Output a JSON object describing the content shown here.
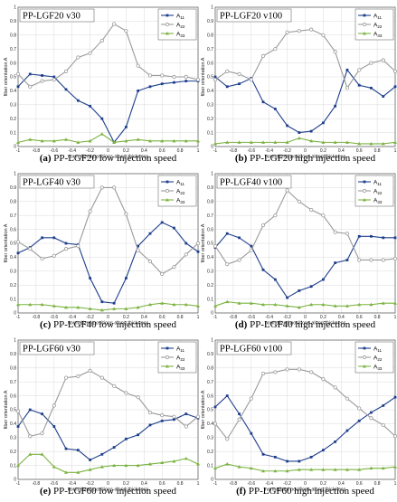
{
  "colors": {
    "A11": "#1f3f8c",
    "A22": "#9a9a9a",
    "A33": "#7cb342",
    "grid": "#d9d9d9",
    "frame": "#555555"
  },
  "legend": [
    {
      "base": "A",
      "sub": "11"
    },
    {
      "base": "A",
      "sub": "22"
    },
    {
      "base": "A",
      "sub": "33"
    }
  ],
  "chart_data": [
    {
      "type": "line",
      "title": "PP-LGF20 v30",
      "tag": "(a)",
      "caption": "PP-LGF20 low injection speed",
      "xlabel": "normalized positions along thickness",
      "ylabel": "fiber orientation A",
      "xlim": [
        -1,
        1
      ],
      "ylim": [
        0,
        1
      ],
      "grid": true,
      "legend": "top-right",
      "xticks": [
        "-1",
        "-0.8",
        "-0.6",
        "-0.4",
        "-0.2",
        "0",
        "0.2",
        "0.4",
        "0.6",
        "0.8",
        "1"
      ],
      "yticks": [
        "0",
        "0.1",
        "0.2",
        "0.3",
        "0.4",
        "0.5",
        "0.6",
        "0.7",
        "0.8",
        "0.9",
        "1"
      ],
      "x": [
        -1,
        -0.867,
        -0.733,
        -0.6,
        -0.467,
        -0.333,
        -0.2,
        -0.067,
        0.067,
        0.2,
        0.333,
        0.467,
        0.6,
        0.733,
        0.867,
        1
      ],
      "series": [
        {
          "name": "A11",
          "values": [
            0.43,
            0.52,
            0.51,
            0.5,
            0.41,
            0.33,
            0.29,
            0.2,
            0.03,
            0.14,
            0.4,
            0.43,
            0.45,
            0.46,
            0.47,
            0.47
          ]
        },
        {
          "name": "A22",
          "values": [
            0.52,
            0.43,
            0.47,
            0.48,
            0.54,
            0.64,
            0.67,
            0.76,
            0.88,
            0.83,
            0.58,
            0.51,
            0.51,
            0.5,
            0.5,
            0.48
          ]
        },
        {
          "name": "A33",
          "values": [
            0.03,
            0.05,
            0.04,
            0.04,
            0.05,
            0.03,
            0.04,
            0.09,
            0.03,
            0.04,
            0.05,
            0.04,
            0.04,
            0.04,
            0.04,
            0.04
          ]
        }
      ]
    },
    {
      "type": "line",
      "title": "PP-LGF20 v100",
      "tag": "(b)",
      "caption": "PP-LGF20 high injection speed",
      "xlabel": "normalized positions along thickness",
      "ylabel": "fiber orientation A",
      "xlim": [
        -1,
        1
      ],
      "ylim": [
        0,
        1
      ],
      "grid": true,
      "legend": "top-right",
      "xticks": [
        "-1",
        "-0.8",
        "-0.6",
        "-0.4",
        "-0.2",
        "0",
        "0.2",
        "0.4",
        "0.6",
        "0.8",
        "1"
      ],
      "yticks": [
        "0",
        "0.1",
        "0.2",
        "0.3",
        "0.4",
        "0.5",
        "0.6",
        "0.7",
        "0.8",
        "0.9",
        "1"
      ],
      "x": [
        -1,
        -0.867,
        -0.733,
        -0.6,
        -0.467,
        -0.333,
        -0.2,
        -0.067,
        0.067,
        0.2,
        0.333,
        0.467,
        0.6,
        0.733,
        0.867,
        1
      ],
      "series": [
        {
          "name": "A11",
          "values": [
            0.5,
            0.43,
            0.45,
            0.49,
            0.32,
            0.27,
            0.15,
            0.1,
            0.11,
            0.17,
            0.29,
            0.55,
            0.44,
            0.42,
            0.36,
            0.43
          ]
        },
        {
          "name": "A22",
          "values": [
            0.48,
            0.54,
            0.52,
            0.48,
            0.65,
            0.7,
            0.82,
            0.83,
            0.84,
            0.8,
            0.68,
            0.42,
            0.55,
            0.6,
            0.62,
            0.54
          ]
        },
        {
          "name": "A33",
          "values": [
            0.02,
            0.03,
            0.03,
            0.03,
            0.03,
            0.03,
            0.03,
            0.06,
            0.04,
            0.03,
            0.03,
            0.03,
            0.02,
            0.02,
            0.02,
            0.03
          ]
        }
      ]
    },
    {
      "type": "line",
      "title": "PP-LGF40 v30",
      "tag": "(c)",
      "caption": "PP-LGF40 low injection speed",
      "xlabel": "normalized positions along thickness",
      "ylabel": "fiber orientation A",
      "xlim": [
        -1,
        1
      ],
      "ylim": [
        0,
        1
      ],
      "grid": true,
      "legend": "top-right",
      "xticks": [
        "-1",
        "-0.8",
        "-0.6",
        "-0.4",
        "-0.2",
        "0",
        "0.2",
        "0.4",
        "0.6",
        "0.8",
        "1"
      ],
      "yticks": [
        "0",
        "0.1",
        "0.2",
        "0.3",
        "0.4",
        "0.5",
        "0.6",
        "0.7",
        "0.8",
        "0.9",
        "1"
      ],
      "x": [
        -1,
        -0.867,
        -0.733,
        -0.6,
        -0.467,
        -0.333,
        -0.2,
        -0.067,
        0.067,
        0.2,
        0.333,
        0.467,
        0.6,
        0.733,
        0.867,
        1
      ],
      "series": [
        {
          "name": "A11",
          "values": [
            0.43,
            0.47,
            0.54,
            0.54,
            0.5,
            0.49,
            0.25,
            0.08,
            0.07,
            0.25,
            0.48,
            0.57,
            0.65,
            0.61,
            0.5,
            0.44
          ]
        },
        {
          "name": "A22",
          "values": [
            0.51,
            0.46,
            0.39,
            0.41,
            0.46,
            0.48,
            0.73,
            0.9,
            0.9,
            0.71,
            0.45,
            0.37,
            0.28,
            0.33,
            0.42,
            0.5
          ]
        },
        {
          "name": "A33",
          "values": [
            0.06,
            0.06,
            0.06,
            0.05,
            0.04,
            0.04,
            0.03,
            0.02,
            0.03,
            0.03,
            0.04,
            0.06,
            0.07,
            0.06,
            0.06,
            0.05
          ]
        }
      ]
    },
    {
      "type": "line",
      "title": "PP-LGF40 v100",
      "tag": "(d)",
      "caption": "PP-LGF40 high injection speed",
      "xlabel": "normalized positions along thickness",
      "ylabel": "fiber orientation A",
      "xlim": [
        -1,
        1
      ],
      "ylim": [
        0,
        1
      ],
      "grid": true,
      "legend": "top-right",
      "xticks": [
        "-1",
        "-0.8",
        "-0.6",
        "-0.4",
        "-0.2",
        "0",
        "0.2",
        "0.4",
        "0.6",
        "0.8",
        "1"
      ],
      "yticks": [
        "0",
        "0.1",
        "0.2",
        "0.3",
        "0.4",
        "0.5",
        "0.6",
        "0.7",
        "0.8",
        "0.9",
        "1"
      ],
      "x": [
        -1,
        -0.867,
        -0.733,
        -0.6,
        -0.467,
        -0.333,
        -0.2,
        -0.067,
        0.067,
        0.2,
        0.333,
        0.467,
        0.6,
        0.733,
        0.867,
        1
      ],
      "series": [
        {
          "name": "A11",
          "values": [
            0.47,
            0.57,
            0.54,
            0.48,
            0.31,
            0.24,
            0.11,
            0.16,
            0.19,
            0.24,
            0.36,
            0.38,
            0.55,
            0.55,
            0.54,
            0.54
          ]
        },
        {
          "name": "A22",
          "values": [
            0.48,
            0.35,
            0.38,
            0.45,
            0.63,
            0.7,
            0.88,
            0.8,
            0.74,
            0.7,
            0.58,
            0.57,
            0.38,
            0.38,
            0.38,
            0.39
          ]
        },
        {
          "name": "A33",
          "values": [
            0.05,
            0.08,
            0.07,
            0.07,
            0.06,
            0.06,
            0.05,
            0.04,
            0.06,
            0.06,
            0.05,
            0.05,
            0.06,
            0.06,
            0.07,
            0.07
          ]
        }
      ]
    },
    {
      "type": "line",
      "title": "PP-LGF60 v30",
      "tag": "(e)",
      "caption": "PP-LGF60 low injection speed",
      "xlabel": "normalized positions along thickness",
      "ylabel": "fiber orientation A",
      "xlim": [
        -1,
        1
      ],
      "ylim": [
        0,
        1
      ],
      "grid": true,
      "legend": "top-right",
      "xticks": [
        "-1",
        "-0.8",
        "-0.6",
        "-0.4",
        "-0.2",
        "0",
        "0.2",
        "0.4",
        "0.6",
        "0.8",
        "1"
      ],
      "yticks": [
        "0",
        "0.1",
        "0.2",
        "0.3",
        "0.4",
        "0.5",
        "0.6",
        "0.7",
        "0.8",
        "0.9",
        "1"
      ],
      "x": [
        -1,
        -0.867,
        -0.733,
        -0.6,
        -0.467,
        -0.333,
        -0.2,
        -0.067,
        0.067,
        0.2,
        0.333,
        0.467,
        0.6,
        0.733,
        0.867,
        1
      ],
      "series": [
        {
          "name": "A11",
          "values": [
            0.38,
            0.5,
            0.47,
            0.38,
            0.22,
            0.21,
            0.14,
            0.18,
            0.23,
            0.29,
            0.32,
            0.39,
            0.42,
            0.43,
            0.47,
            0.44
          ]
        },
        {
          "name": "A22",
          "values": [
            0.49,
            0.31,
            0.33,
            0.53,
            0.73,
            0.74,
            0.78,
            0.73,
            0.67,
            0.62,
            0.59,
            0.48,
            0.46,
            0.45,
            0.38,
            0.45
          ]
        },
        {
          "name": "A33",
          "values": [
            0.1,
            0.18,
            0.18,
            0.09,
            0.05,
            0.05,
            0.07,
            0.09,
            0.1,
            0.1,
            0.1,
            0.11,
            0.12,
            0.13,
            0.15,
            0.11
          ]
        }
      ]
    },
    {
      "type": "line",
      "title": "PP-LGF60 v100",
      "tag": "(f)",
      "caption": "PP-LGF60 high injection speed",
      "xlabel": "normalized positions along thickness",
      "ylabel": "fiber orientation A",
      "xlim": [
        -1,
        1
      ],
      "ylim": [
        0,
        1
      ],
      "grid": true,
      "legend": "top-right",
      "xticks": [
        "-1",
        "-0.8",
        "-0.6",
        "-0.4",
        "-0.2",
        "0",
        "0.2",
        "0.4",
        "0.6",
        "0.8",
        "1"
      ],
      "yticks": [
        "0",
        "0.1",
        "0.2",
        "0.3",
        "0.4",
        "0.5",
        "0.6",
        "0.7",
        "0.8",
        "0.9",
        "1"
      ],
      "x": [
        -1,
        -0.867,
        -0.733,
        -0.6,
        -0.467,
        -0.333,
        -0.2,
        -0.067,
        0.067,
        0.2,
        0.333,
        0.467,
        0.6,
        0.733,
        0.867,
        1
      ],
      "series": [
        {
          "name": "A11",
          "values": [
            0.52,
            0.6,
            0.47,
            0.33,
            0.18,
            0.16,
            0.13,
            0.13,
            0.16,
            0.21,
            0.27,
            0.35,
            0.42,
            0.48,
            0.53,
            0.59
          ]
        },
        {
          "name": "A22",
          "values": [
            0.4,
            0.29,
            0.43,
            0.58,
            0.76,
            0.77,
            0.79,
            0.79,
            0.77,
            0.72,
            0.66,
            0.58,
            0.51,
            0.44,
            0.39,
            0.31
          ]
        },
        {
          "name": "A33",
          "values": [
            0.08,
            0.11,
            0.09,
            0.08,
            0.06,
            0.06,
            0.06,
            0.07,
            0.07,
            0.07,
            0.07,
            0.07,
            0.07,
            0.08,
            0.08,
            0.09
          ]
        }
      ]
    }
  ]
}
